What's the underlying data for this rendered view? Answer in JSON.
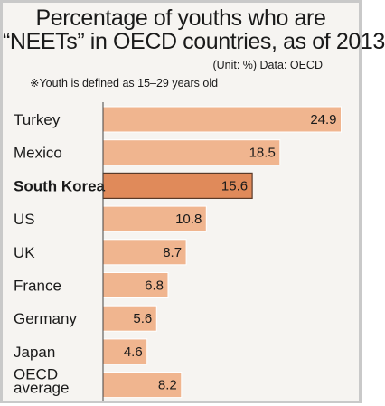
{
  "header": {
    "title_line1": "Percentage of youths who are",
    "title_line2": "“NEETs” in OECD countries, as of 2013",
    "unit_source": "(Unit: %) Data: OECD",
    "note": "※Youth is defined as 15–29 years old"
  },
  "colors": {
    "bar": "#f0b58f",
    "bar_highlight": "#e08a5a",
    "bar_border": "#ffffff",
    "highlight_border": "#5a3a28",
    "axis": "#444444"
  },
  "chart_data": {
    "type": "bar",
    "orientation": "horizontal",
    "categories": [
      "Turkey",
      "Mexico",
      "South Korea",
      "US",
      "UK",
      "France",
      "Germany",
      "Japan",
      "OECD average"
    ],
    "category_lines": [
      [
        "Turkey"
      ],
      [
        "Mexico"
      ],
      [
        "South Korea"
      ],
      [
        "US"
      ],
      [
        "UK"
      ],
      [
        "France"
      ],
      [
        "Germany"
      ],
      [
        "Japan"
      ],
      [
        "OECD",
        "average"
      ]
    ],
    "values": [
      24.9,
      18.5,
      15.6,
      10.8,
      8.7,
      6.8,
      5.6,
      4.6,
      8.2
    ],
    "value_labels": [
      "24.9",
      "18.5",
      "15.6",
      "10.8",
      "8.7",
      "6.8",
      "5.6",
      "4.6",
      "8.2"
    ],
    "highlight": "South Korea",
    "unit": "%",
    "xlim": [
      0,
      25.7
    ],
    "grid": false,
    "legend": "none"
  }
}
